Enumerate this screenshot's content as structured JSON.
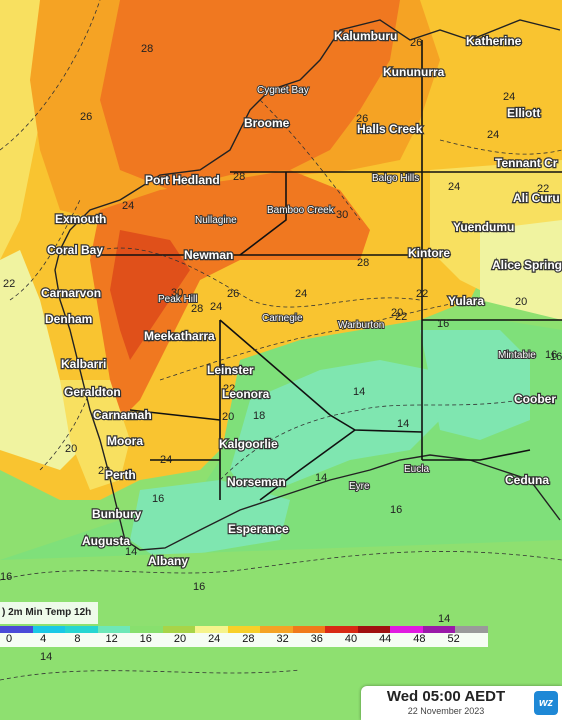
{
  "map": {
    "colors": {
      "hot": "#e0501a",
      "orange_dark": "#f07820",
      "orange": "#f5a324",
      "yellow_orange": "#f9c430",
      "yellow": "#f8e060",
      "pale_yellow": "#f0f3a0",
      "green": "#7fe07a",
      "teal": "#7fe6b0",
      "ocean_green": "#8ee070"
    },
    "towns": [
      "Kalumburu",
      "Katherine",
      "Kununurra",
      "Cygnet Bay",
      "Elliott",
      "Broome",
      "Halls Creek",
      "Tennant Cr",
      "Balgo Hills",
      "Ali Curu",
      "Port Hedland",
      "Bamboo Creek",
      "Nullagine",
      "Exmouth",
      "Yuendumu",
      "Coral Bay",
      "Newman",
      "Kintore",
      "Alice Spring",
      "Carnarvon",
      "Peak Hill",
      "Yulara",
      "Denham",
      "Carnegie",
      "Warburton",
      "Meekatharra",
      "Mintabie",
      "Kalbarri",
      "Leinster",
      "Leonora",
      "Geraldton",
      "Coober",
      "Carnamah",
      "Moora",
      "Kalgoorlie",
      "Perth",
      "Norseman",
      "Eucla",
      "Eyre",
      "Ceduna",
      "Bunbury",
      "Esperance",
      "Augusta",
      "Albany"
    ],
    "contour_labels": [
      "28",
      "26",
      "24",
      "26",
      "26",
      "24",
      "28",
      "22",
      "24",
      "24",
      "30",
      "28",
      "22",
      "22",
      "26",
      "24",
      "20",
      "16",
      "16",
      "22",
      "30",
      "28",
      "24",
      "22",
      "18",
      "20",
      "20",
      "14",
      "14",
      "14",
      "16",
      "24",
      "16",
      "14",
      "16",
      "20",
      "22",
      "16",
      "14",
      "16",
      "14"
    ]
  },
  "legend": {
    "title": ") 2m Min Temp 12h",
    "ticks": [
      "0",
      "4",
      "8",
      "12",
      "16",
      "20",
      "24",
      "28",
      "32",
      "36",
      "40",
      "44",
      "48",
      "52"
    ],
    "swatches": [
      "#4a4ad8",
      "#1ac8e6",
      "#26d6d2",
      "#6ee8b8",
      "#88e06e",
      "#a8d448",
      "#f6f48c",
      "#f8d028",
      "#f5a324",
      "#f07a1a",
      "#d82a14",
      "#a01010",
      "#e01ce0",
      "#9a1aa8",
      "#9a9a9a"
    ]
  },
  "timestamp": {
    "main": "Wed 05:00 AEDT",
    "date": "22 November 2023",
    "logo": "wz"
  }
}
